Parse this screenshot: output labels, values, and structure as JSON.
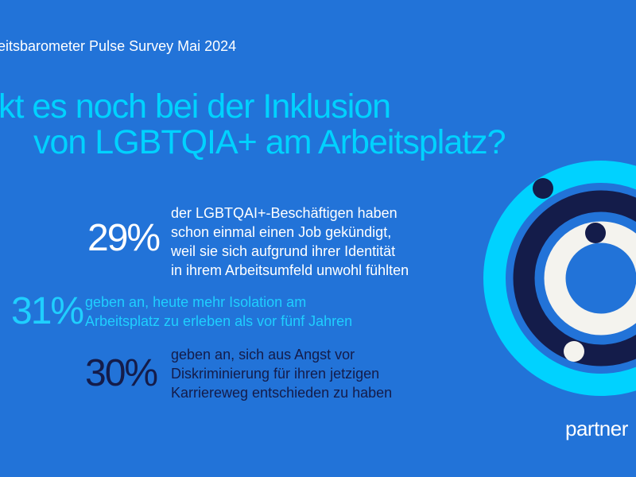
{
  "header": {
    "survey_label": "eitsbarometer Pulse Survey Mai 2024"
  },
  "title": {
    "lines": [
      "kt es noch bei der Inklusion",
      "von LGBTQIA+ am Arbeitsplatz?"
    ]
  },
  "stats": [
    {
      "value": "29%",
      "lines": [
        "der LGBTQAI+-Beschäftigen haben",
        "schon einmal einen Job gekündigt,",
        "weil sie sich aufgrund ihrer Identität",
        "in ihrem Arbeitsumfeld unwohl fühlten"
      ]
    },
    {
      "value": "31%",
      "lines": [
        "geben an, heute mehr Isolation am",
        "Arbeitsplatz zu erleben als vor fünf Jahren"
      ]
    },
    {
      "value": "30%",
      "lines": [
        "geben an, sich aus Angst vor",
        "Diskriminierung für ihren jetzigen",
        "Karriereweg entschieden zu haben"
      ]
    }
  ],
  "logo": {
    "text": "partner"
  },
  "colors": {
    "background": "#2273d8",
    "cyan": "#00d2ff",
    "navy": "#141c4a",
    "offwhite": "#f4f3ee",
    "white": "#ffffff"
  }
}
